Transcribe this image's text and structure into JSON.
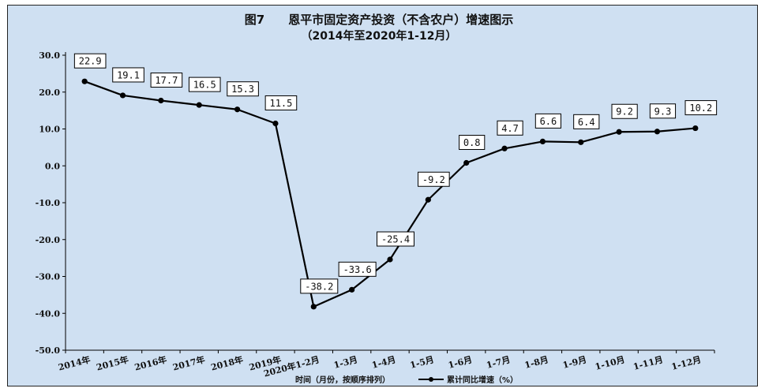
{
  "chart_data": {
    "type": "line",
    "title": "图7　　恩平市固定资产投资（不含农户）增速图示",
    "subtitle": "（2014年至2020年1-12月）",
    "xlabel": "时间（月份，按顺序排列）",
    "ylabel": "",
    "ylim": [
      -50,
      30
    ],
    "yticks": [
      "30.0",
      "20.0",
      "10.0",
      "0.0",
      "-10.0",
      "-20.0",
      "-30.0",
      "-40.0",
      "-50.0"
    ],
    "categories": [
      "2014年",
      "2015年",
      "2016年",
      "2017年",
      "2018年",
      "2019年",
      "2020年1-2月",
      "1-3月",
      "1-4月",
      "1-5月",
      "1-6月",
      "1-7月",
      "1-8月",
      "1-9月",
      "1-10月",
      "1-11月",
      "1-12月"
    ],
    "series": [
      {
        "name": "累计同比增速（%）",
        "values": [
          22.9,
          19.1,
          17.7,
          16.5,
          15.3,
          11.5,
          -38.2,
          -33.6,
          -25.4,
          -9.2,
          0.8,
          4.7,
          6.6,
          6.4,
          9.2,
          9.3,
          10.2
        ],
        "labels": [
          "22.9",
          "19.1",
          "17.7",
          "16.5",
          "15.3",
          "11.5",
          "-38.2",
          "-33.6",
          "-25.4",
          "-9.2",
          "0.8",
          "4.7",
          "6.6",
          "6.4",
          "9.2",
          "9.3",
          "10.2"
        ]
      }
    ],
    "grid": false,
    "legend": "bottom",
    "colors": {
      "background": "#cfe0f2",
      "line": "#000000"
    }
  }
}
